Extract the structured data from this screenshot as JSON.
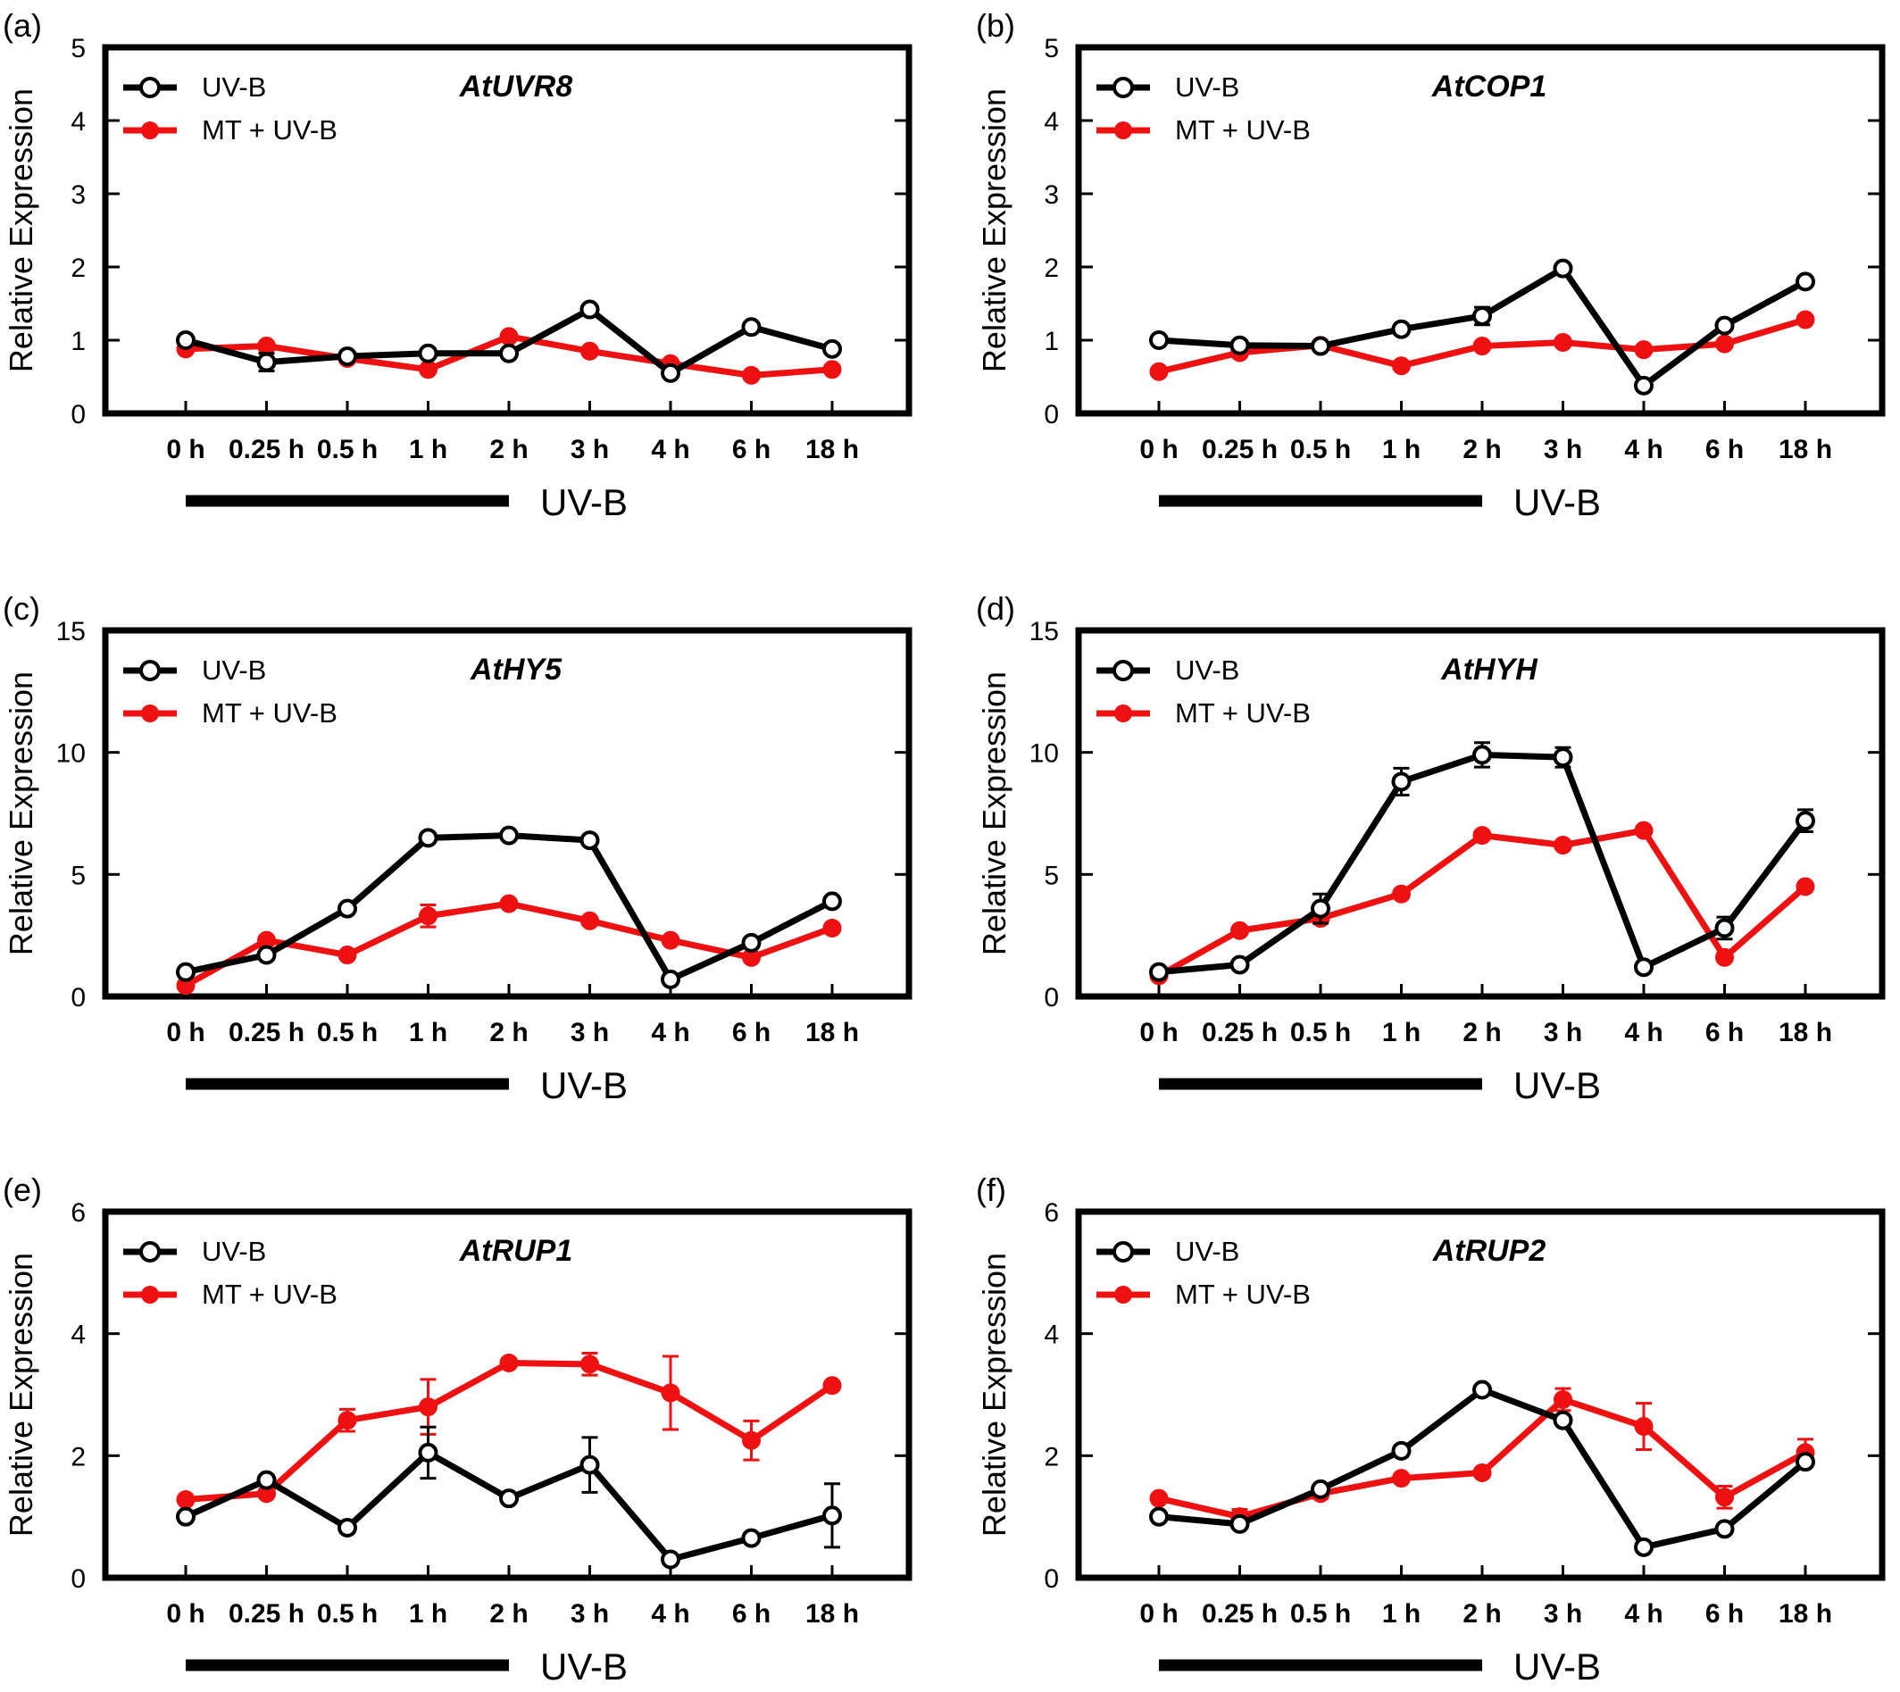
{
  "chart_data": [
    {
      "type": "line",
      "panel_label": "(a)",
      "title": "AtUVR8",
      "ylabel": "Relative Expression",
      "ylim": [
        0,
        5
      ],
      "yticks": [
        "0",
        "1",
        "2",
        "3",
        "4",
        "5"
      ],
      "categories": [
        "0 h",
        "0.25 h",
        "0.5 h",
        "1 h",
        "2 h",
        "3 h",
        "4 h",
        "6 h",
        "18 h"
      ],
      "treatment_label": "UV-B",
      "series": [
        {
          "name": "UV-B",
          "color": "#000000",
          "marker": "open-circle",
          "values": [
            1.0,
            0.7,
            0.78,
            0.82,
            0.82,
            1.42,
            0.55,
            1.18,
            0.88
          ],
          "errors": [
            0.05,
            0.12,
            0.06,
            0.05,
            0.05,
            0.06,
            0.05,
            0.06,
            0.06
          ]
        },
        {
          "name": "MT + UV-B",
          "color": "#ee1111",
          "marker": "filled-circle",
          "values": [
            0.88,
            0.92,
            0.75,
            0.6,
            1.05,
            0.85,
            0.68,
            0.52,
            0.6
          ],
          "errors": [
            0.04,
            0.04,
            0.04,
            0.04,
            0.05,
            0.04,
            0.04,
            0.04,
            0.04
          ]
        }
      ]
    },
    {
      "type": "line",
      "panel_label": "(b)",
      "title": "AtCOP1",
      "ylabel": "Relative Expression",
      "ylim": [
        0,
        5
      ],
      "yticks": [
        "0",
        "1",
        "2",
        "3",
        "4",
        "5"
      ],
      "categories": [
        "0 h",
        "0.25 h",
        "0.5 h",
        "1 h",
        "2 h",
        "3 h",
        "4 h",
        "6 h",
        "18 h"
      ],
      "treatment_label": "UV-B",
      "series": [
        {
          "name": "UV-B",
          "color": "#000000",
          "marker": "open-circle",
          "values": [
            1.0,
            0.93,
            0.92,
            1.15,
            1.33,
            1.98,
            0.38,
            1.2,
            1.8
          ],
          "errors": [
            0.04,
            0.04,
            0.04,
            0.05,
            0.12,
            0.06,
            0.05,
            0.06,
            0.05
          ]
        },
        {
          "name": "MT + UV-B",
          "color": "#ee1111",
          "marker": "filled-circle",
          "values": [
            0.57,
            0.83,
            0.93,
            0.65,
            0.92,
            0.97,
            0.87,
            0.95,
            1.28
          ],
          "errors": [
            0.04,
            0.04,
            0.04,
            0.04,
            0.04,
            0.04,
            0.04,
            0.04,
            0.04
          ]
        }
      ]
    },
    {
      "type": "line",
      "panel_label": "(c)",
      "title": "AtHY5",
      "ylabel": "Relative Expression",
      "ylim": [
        0,
        15
      ],
      "yticks": [
        "0",
        "5",
        "10",
        "15"
      ],
      "categories": [
        "0 h",
        "0.25 h",
        "0.5 h",
        "1 h",
        "2 h",
        "3 h",
        "4 h",
        "6 h",
        "18 h"
      ],
      "treatment_label": "UV-B",
      "series": [
        {
          "name": "UV-B",
          "color": "#000000",
          "marker": "open-circle",
          "values": [
            1.0,
            1.7,
            3.6,
            6.5,
            6.6,
            6.4,
            0.7,
            2.2,
            3.9
          ],
          "errors": [
            0.1,
            0.15,
            0.15,
            0.15,
            0.15,
            0.15,
            0.1,
            0.15,
            0.15
          ]
        },
        {
          "name": "MT + UV-B",
          "color": "#ee1111",
          "marker": "filled-circle",
          "values": [
            0.45,
            2.3,
            1.7,
            3.3,
            3.8,
            3.1,
            2.3,
            1.6,
            2.8
          ],
          "errors": [
            0.1,
            0.15,
            0.1,
            0.45,
            0.15,
            0.12,
            0.12,
            0.12,
            0.12
          ]
        }
      ]
    },
    {
      "type": "line",
      "panel_label": "(d)",
      "title": "AtHYH",
      "ylabel": "Relative Expression",
      "ylim": [
        0,
        15
      ],
      "yticks": [
        "0",
        "5",
        "10",
        "15"
      ],
      "categories": [
        "0 h",
        "0.25 h",
        "0.5 h",
        "1 h",
        "2 h",
        "3 h",
        "4 h",
        "6 h",
        "18 h"
      ],
      "treatment_label": "UV-B",
      "series": [
        {
          "name": "UV-B",
          "color": "#000000",
          "marker": "open-circle",
          "values": [
            1.0,
            1.3,
            3.6,
            8.8,
            9.9,
            9.8,
            1.2,
            2.8,
            7.2
          ],
          "errors": [
            0.1,
            0.1,
            0.6,
            0.55,
            0.5,
            0.4,
            0.12,
            0.45,
            0.45
          ]
        },
        {
          "name": "MT + UV-B",
          "color": "#ee1111",
          "marker": "filled-circle",
          "values": [
            0.85,
            2.7,
            3.2,
            4.2,
            6.6,
            6.2,
            6.8,
            1.6,
            4.5
          ],
          "errors": [
            0.1,
            0.15,
            0.15,
            0.15,
            0.15,
            0.15,
            0.15,
            0.15,
            0.15
          ]
        }
      ]
    },
    {
      "type": "line",
      "panel_label": "(e)",
      "title": "AtRUP1",
      "ylabel": "Relative Expression",
      "ylim": [
        0,
        6
      ],
      "yticks": [
        "0",
        "2",
        "4",
        "6"
      ],
      "categories": [
        "0 h",
        "0.25 h",
        "0.5 h",
        "1 h",
        "2 h",
        "3 h",
        "4 h",
        "6 h",
        "18 h"
      ],
      "treatment_label": "UV-B",
      "series": [
        {
          "name": "UV-B",
          "color": "#000000",
          "marker": "open-circle",
          "values": [
            1.0,
            1.6,
            0.82,
            2.05,
            1.3,
            1.85,
            0.3,
            0.65,
            1.02
          ],
          "errors": [
            0.05,
            0.06,
            0.05,
            0.42,
            0.06,
            0.45,
            0.06,
            0.06,
            0.52
          ]
        },
        {
          "name": "MT + UV-B",
          "color": "#ee1111",
          "marker": "filled-circle",
          "values": [
            1.28,
            1.38,
            2.58,
            2.8,
            3.52,
            3.5,
            3.03,
            2.25,
            3.15
          ],
          "errors": [
            0.06,
            0.06,
            0.18,
            0.45,
            0.06,
            0.18,
            0.6,
            0.32,
            0.06
          ]
        }
      ]
    },
    {
      "type": "line",
      "panel_label": "(f)",
      "title": "AtRUP2",
      "ylabel": "Relative Expression",
      "ylim": [
        0,
        6
      ],
      "yticks": [
        "0",
        "2",
        "4",
        "6"
      ],
      "categories": [
        "0 h",
        "0.25 h",
        "0.5 h",
        "1 h",
        "2 h",
        "3 h",
        "4 h",
        "6 h",
        "18 h"
      ],
      "treatment_label": "UV-B",
      "series": [
        {
          "name": "UV-B",
          "color": "#000000",
          "marker": "open-circle",
          "values": [
            1.0,
            0.88,
            1.45,
            2.08,
            3.08,
            2.58,
            0.5,
            0.8,
            1.9
          ],
          "errors": [
            0.05,
            0.05,
            0.06,
            0.06,
            0.06,
            0.06,
            0.05,
            0.05,
            0.08
          ]
        },
        {
          "name": "MT + UV-B",
          "color": "#ee1111",
          "marker": "filled-circle",
          "values": [
            1.3,
            1.0,
            1.38,
            1.63,
            1.72,
            2.92,
            2.48,
            1.32,
            2.05
          ],
          "errors": [
            0.05,
            0.12,
            0.08,
            0.06,
            0.06,
            0.18,
            0.38,
            0.18,
            0.22
          ]
        }
      ]
    }
  ]
}
